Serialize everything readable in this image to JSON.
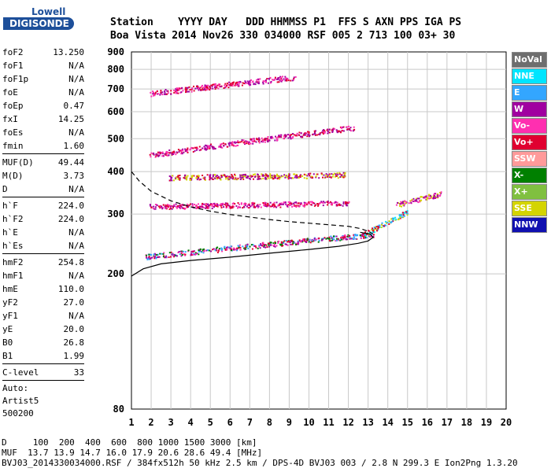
{
  "logo": {
    "line1": "Lowell",
    "line2": "DIGISONDE"
  },
  "header": {
    "line1": "Station    YYYY DAY   DDD HHMMSS P1  FFS S AXN PPS IGA PS",
    "line2": "Boa Vista 2014 Nov26 330 034000 RSF 005 2 713 100 03+ 30"
  },
  "params": {
    "group1": [
      {
        "k": "foF2",
        "v": "13.250"
      },
      {
        "k": "foF1",
        "v": "N/A"
      },
      {
        "k": "foF1p",
        "v": "N/A"
      },
      {
        "k": "foE",
        "v": "N/A"
      },
      {
        "k": "foEp",
        "v": "0.47"
      },
      {
        "k": "fxI",
        "v": "14.25"
      },
      {
        "k": "foEs",
        "v": "N/A"
      },
      {
        "k": "fmin",
        "v": "1.60"
      }
    ],
    "group2": [
      {
        "k": "MUF(D)",
        "v": "49.44"
      },
      {
        "k": "M(D)",
        "v": "3.73"
      },
      {
        "k": "D",
        "v": "N/A"
      }
    ],
    "group3": [
      {
        "k": "h`F",
        "v": "224.0"
      },
      {
        "k": "h`F2",
        "v": "224.0"
      },
      {
        "k": "h`E",
        "v": "N/A"
      },
      {
        "k": "h`Es",
        "v": "N/A"
      }
    ],
    "group4": [
      {
        "k": "hmF2",
        "v": "254.8"
      },
      {
        "k": "hmF1",
        "v": "N/A"
      },
      {
        "k": "hmE",
        "v": "110.0"
      },
      {
        "k": "yF2",
        "v": "27.0"
      },
      {
        "k": "yF1",
        "v": "N/A"
      },
      {
        "k": "yE",
        "v": "20.0"
      },
      {
        "k": "B0",
        "v": "26.8"
      },
      {
        "k": "B1",
        "v": "1.99"
      }
    ],
    "group5": [
      {
        "k": "C-level",
        "v": "33"
      }
    ],
    "auto_lines": [
      "Auto:",
      "Artist5",
      "500200"
    ]
  },
  "legend": [
    {
      "label": "NoVal",
      "color": "#6e6e6e"
    },
    {
      "label": "NNE",
      "color": "#00e5ff"
    },
    {
      "label": "E",
      "color": "#33a6ff"
    },
    {
      "label": "W",
      "color": "#a000a0"
    },
    {
      "label": "Vo-",
      "color": "#ff2fb0"
    },
    {
      "label": "Vo+",
      "color": "#e00030"
    },
    {
      "label": "SSW",
      "color": "#ff9a9a"
    },
    {
      "label": "X-",
      "color": "#008000"
    },
    {
      "label": "X+",
      "color": "#80c040"
    },
    {
      "label": "SSE",
      "color": "#d4d400"
    },
    {
      "label": "NNW",
      "color": "#1010b0"
    }
  ],
  "footer": {
    "line1": "D     100  200  400  600  800 1000 1500 3000 [km]",
    "line2": "MUF  13.7 13.9 14.7 16.0 17.9 20.6 28.6 49.4 [MHz]",
    "line3": "BVJ03_2014330034000.RSF / 384fx512h 50 kHz 2.5 km / DPS-4D BVJ03 003 / 2.8 N 299.3 E Ion2Png 1.3.20"
  },
  "chart_data": {
    "type": "scatter",
    "xlim": [
      1,
      20
    ],
    "ylim": [
      80,
      900
    ],
    "y_scale": "log",
    "x_ticks": [
      1,
      2,
      3,
      4,
      5,
      6,
      7,
      8,
      9,
      10,
      11,
      12,
      13,
      14,
      15,
      16,
      17,
      18,
      19,
      20
    ],
    "y_ticks": [
      80,
      200,
      300,
      400,
      500,
      600,
      700,
      800,
      900
    ],
    "grid": true,
    "traces": [
      {
        "name": "O-trace F2",
        "colors": [
          "#e00030",
          "#ff2fb0",
          "#a000a0",
          "#33a6ff",
          "#008000"
        ],
        "x_range": [
          1.7,
          13.3
        ],
        "h_start": 225,
        "h_end": 262
      },
      {
        "name": "X-trace / spread",
        "colors": [
          "#00e5ff",
          "#33a6ff",
          "#d4d400",
          "#e00030"
        ],
        "x_range": [
          12.8,
          15.0
        ],
        "h_start": 262,
        "h_end": 305
      },
      {
        "name": "W spread high freq",
        "colors": [
          "#a000a0",
          "#ff2fb0",
          "#d4d400"
        ],
        "x_range": [
          14.4,
          16.7
        ],
        "h_start": 320,
        "h_end": 345
      },
      {
        "name": "2nd hop",
        "colors": [
          "#e00030",
          "#ff2fb0",
          "#a000a0"
        ],
        "x_range": [
          1.9,
          12.3
        ],
        "h_start": 448,
        "h_end": 540
      },
      {
        "name": "3rd hop",
        "colors": [
          "#e00030",
          "#ff2fb0",
          "#a000a0"
        ],
        "x_range": [
          1.9,
          9.3
        ],
        "h_start": 680,
        "h_end": 760
      },
      {
        "name": "band 390",
        "colors": [
          "#e00030",
          "#a000a0",
          "#d4d400"
        ],
        "x_range": [
          2.9,
          11.8
        ],
        "h_start": 385,
        "h_end": 392
      },
      {
        "name": "band 320",
        "colors": [
          "#e00030",
          "#a000a0",
          "#ff2fb0"
        ],
        "x_range": [
          1.9,
          12.0
        ],
        "h_start": 316,
        "h_end": 324
      }
    ],
    "profile_solid": [
      [
        1.0,
        197
      ],
      [
        1.6,
        207
      ],
      [
        2.5,
        214
      ],
      [
        4.0,
        219
      ],
      [
        6.0,
        224
      ],
      [
        8.0,
        230
      ],
      [
        10.0,
        236
      ],
      [
        11.5,
        241
      ],
      [
        12.5,
        246
      ],
      [
        13.0,
        250
      ],
      [
        13.25,
        256
      ],
      [
        13.1,
        262
      ],
      [
        12.6,
        265
      ]
    ],
    "profile_dashed": [
      [
        1.0,
        400
      ],
      [
        1.4,
        375
      ],
      [
        2.0,
        350
      ],
      [
        3.0,
        328
      ],
      [
        4.0,
        315
      ],
      [
        5.0,
        306
      ],
      [
        6.0,
        299
      ],
      [
        7.0,
        294
      ],
      [
        8.0,
        289
      ],
      [
        9.0,
        285
      ],
      [
        10.0,
        282
      ],
      [
        11.0,
        279
      ],
      [
        12.0,
        276
      ],
      [
        12.6,
        272
      ],
      [
        13.0,
        267
      ],
      [
        13.25,
        262
      ]
    ]
  }
}
